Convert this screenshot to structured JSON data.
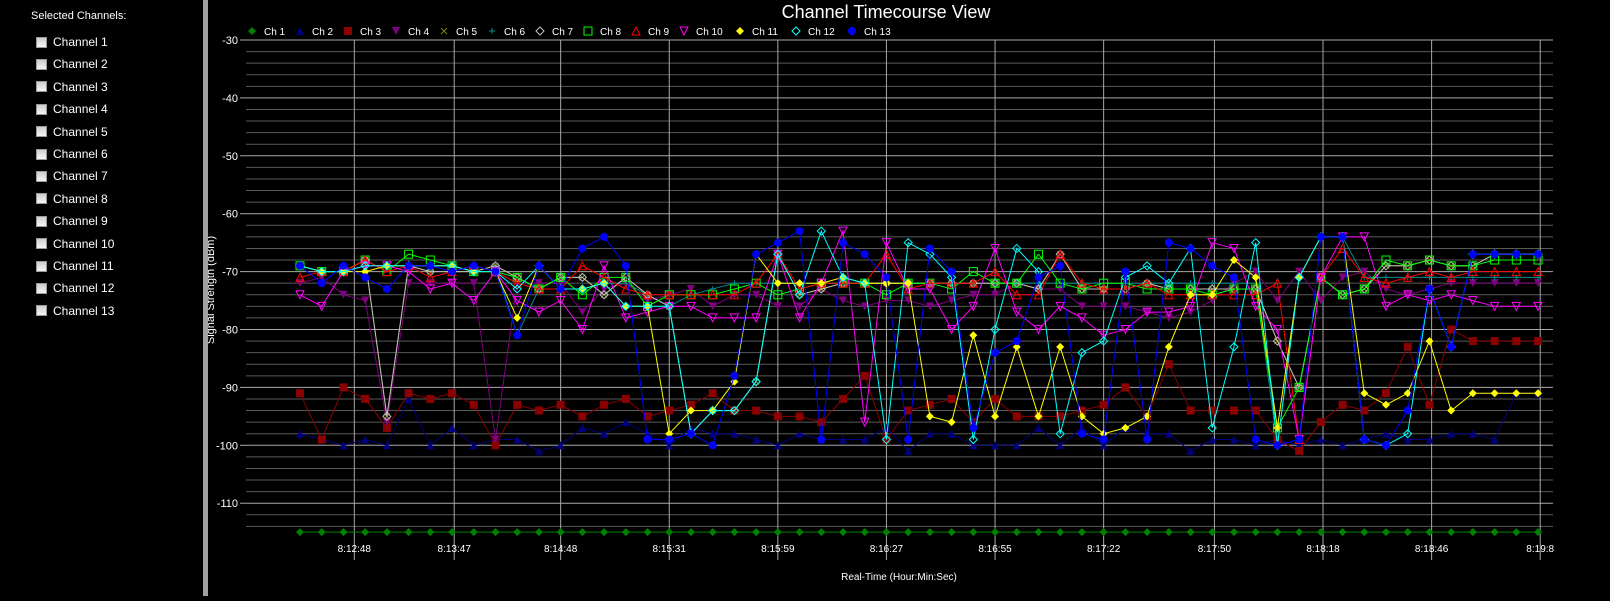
{
  "sidebar": {
    "title": "Selected Channels:",
    "items": [
      {
        "label": "Channel 1",
        "checked": false
      },
      {
        "label": "Channel 2",
        "checked": false
      },
      {
        "label": "Channel 3",
        "checked": false
      },
      {
        "label": "Channel 4",
        "checked": false
      },
      {
        "label": "Channel 5",
        "checked": false
      },
      {
        "label": "Channel 6",
        "checked": false
      },
      {
        "label": "Channel 7",
        "checked": false
      },
      {
        "label": "Channel 8",
        "checked": false
      },
      {
        "label": "Channel 9",
        "checked": false
      },
      {
        "label": "Channel 10",
        "checked": false
      },
      {
        "label": "Channel 11",
        "checked": false
      },
      {
        "label": "Channel 12",
        "checked": false
      },
      {
        "label": "Channel 13",
        "checked": false
      }
    ]
  },
  "chart_data": {
    "type": "line",
    "title": "Channel Timecourse View",
    "xlabel": "Real-Time (Hour:Min:Sec)",
    "ylabel": "Signal Strength (dBm)",
    "ylim": [
      -115,
      -30
    ],
    "yticks": [
      -30,
      -40,
      -50,
      -60,
      -70,
      -80,
      -90,
      -100,
      -110
    ],
    "xticks": [
      "8:12:48",
      "8:13:47",
      "8:14:48",
      "8:15:31",
      "8:15:59",
      "8:16:27",
      "8:16:55",
      "8:17:22",
      "8:17:50",
      "8:18:18",
      "8:18:46",
      "8:19:8"
    ],
    "grid": true,
    "legend_position": "top",
    "n_points": 58,
    "series": [
      {
        "name": "Ch 1",
        "color": "#008000",
        "marker": "diamond-filled",
        "values": [
          -115,
          -115,
          -115,
          -115,
          -115,
          -115,
          -115,
          -115,
          -115,
          -115,
          -115,
          -115,
          -115,
          -115,
          -115,
          -115,
          -115,
          -115,
          -115,
          -115,
          -115,
          -115,
          -115,
          -115,
          -115,
          -115,
          -115,
          -115,
          -115,
          -115,
          -115,
          -115,
          -115,
          -115,
          -115,
          -115,
          -115,
          -115,
          -115,
          -115,
          -115,
          -115,
          -115,
          -115,
          -115,
          -115,
          -115,
          -115,
          -115,
          -115,
          -115,
          -115,
          -115,
          -115,
          -115,
          -115,
          -115,
          -115
        ]
      },
      {
        "name": "Ch 2",
        "color": "#000080",
        "marker": "triangle-up-filled",
        "values": [
          -98,
          -99,
          -100,
          -99,
          -100,
          -92,
          -100,
          -97,
          -100,
          -99,
          -99,
          -101,
          -100,
          -97,
          -98,
          -96,
          -98,
          -100,
          -97,
          -98,
          -98,
          -99,
          -100,
          -98,
          -99,
          -99,
          -99,
          -97,
          -101,
          -98,
          -98,
          -100,
          -100,
          -100,
          -97,
          -100,
          -97,
          -100,
          -97,
          -98,
          -98,
          -101,
          -99,
          -99,
          -100,
          -99,
          -100,
          -99,
          -100,
          -99,
          -98,
          -99,
          -99,
          -98,
          -98,
          -99,
          -91,
          -91
        ]
      },
      {
        "name": "Ch 3",
        "color": "#8b0000",
        "marker": "square-filled",
        "values": [
          -91,
          -99,
          -90,
          -92,
          -97,
          -91,
          -92,
          -91,
          -93,
          -100,
          -93,
          -94,
          -93,
          -95,
          -93,
          -92,
          -95,
          -94,
          -93,
          -91,
          -94,
          -94,
          -95,
          -95,
          -96,
          -92,
          -88,
          -99,
          -94,
          -93,
          -92,
          -96,
          -92,
          -95,
          -95,
          -95,
          -94,
          -93,
          -90,
          -95,
          -86,
          -94,
          -94,
          -94,
          -94,
          -99,
          -101,
          -96,
          -93,
          -94,
          -91,
          -83,
          -93,
          -80,
          -82,
          -82,
          -82,
          -82
        ]
      },
      {
        "name": "Ch 4",
        "color": "#800080",
        "marker": "triangle-down-filled",
        "values": [
          -72,
          -71,
          -74,
          -75,
          -96,
          -72,
          -72,
          -72,
          -72,
          -99,
          -72,
          -72,
          -72,
          -77,
          -73,
          -72,
          -75,
          -74,
          -73,
          -76,
          -74,
          -74,
          -76,
          -76,
          -73,
          -75,
          -76,
          -75,
          -75,
          -76,
          -75,
          -74,
          -74,
          -72,
          -73,
          -73,
          -76,
          -76,
          -76,
          -77,
          -78,
          -77,
          -75,
          -72,
          -70,
          -75,
          -70,
          -75,
          -71,
          -70,
          -73,
          -74,
          -73,
          -72,
          -72,
          -72,
          -72,
          -72
        ]
      },
      {
        "name": "Ch 5",
        "color": "#808000",
        "marker": "x",
        "values": [
          -69,
          -70,
          -70,
          -68,
          -95,
          -69,
          -70,
          -70,
          -70,
          -69,
          -71,
          -73,
          -71,
          -71,
          -74,
          -71,
          -74,
          -76,
          -98,
          -94,
          -94,
          -89,
          -67,
          -74,
          -73,
          -72,
          -72,
          -72,
          -72,
          -72,
          -72,
          -72,
          -72,
          -72,
          -73,
          -67,
          -73,
          -73,
          -73,
          -72,
          -73,
          -73,
          -73,
          -73,
          -73,
          -82,
          -90,
          -71,
          -74,
          -73,
          -69,
          -69,
          -68,
          -69,
          -69,
          -67,
          -67,
          -67
        ]
      },
      {
        "name": "Ch 6",
        "color": "#008b8b",
        "marker": "plus",
        "values": [
          -69,
          -70,
          -70,
          -69,
          -69,
          -69,
          -69,
          -69,
          -70,
          -69,
          -81,
          -73,
          -73,
          -73,
          -72,
          -72,
          -74,
          -76,
          -74,
          -73,
          -72,
          -72,
          -72,
          -72,
          -72,
          -72,
          -72,
          -72,
          -72,
          -72,
          -72,
          -72,
          -72,
          -72,
          -72,
          -72,
          -72,
          -72,
          -72,
          -72,
          -72,
          -72,
          -72,
          -72,
          -72,
          -100,
          -71,
          -64,
          -64,
          -71,
          -71,
          -71,
          -71,
          -71,
          -71,
          -71,
          -71,
          -71
        ]
      },
      {
        "name": "Ch 7",
        "color": "#c0c0c0",
        "marker": "diamond-open",
        "values": [
          -69,
          -70,
          -70,
          -68,
          -95,
          -69,
          -70,
          -70,
          -70,
          -69,
          -71,
          -73,
          -71,
          -71,
          -74,
          -71,
          -74,
          -76,
          -98,
          -94,
          -94,
          -89,
          -67,
          -74,
          -73,
          -72,
          -72,
          -72,
          -72,
          -72,
          -72,
          -72,
          -72,
          -72,
          -73,
          -67,
          -73,
          -73,
          -73,
          -72,
          -73,
          -73,
          -73,
          -73,
          -73,
          -82,
          -90,
          -71,
          -74,
          -73,
          -69,
          -69,
          -68,
          -69,
          -69,
          -67,
          -67,
          -67
        ]
      },
      {
        "name": "Ch 8",
        "color": "#00ff00",
        "marker": "square-open",
        "values": [
          -69,
          -70,
          -70,
          -68,
          -70,
          -67,
          -68,
          -69,
          -70,
          -70,
          -71,
          -73,
          -71,
          -74,
          -71,
          -71,
          -76,
          -74,
          -74,
          -74,
          -73,
          -72,
          -74,
          -73,
          -72,
          -72,
          -72,
          -74,
          -72,
          -72,
          -73,
          -70,
          -72,
          -72,
          -67,
          -72,
          -73,
          -72,
          -72,
          -73,
          -73,
          -73,
          -74,
          -73,
          -73,
          -97,
          -90,
          -71,
          -74,
          -73,
          -68,
          -69,
          -68,
          -69,
          -69,
          -68,
          -68,
          -68
        ]
      },
      {
        "name": "Ch 9",
        "color": "#ff0000",
        "marker": "triangle-up-open",
        "values": [
          -71,
          -70,
          -70,
          -68,
          -70,
          -69,
          -71,
          -70,
          -69,
          -70,
          -72,
          -73,
          -73,
          -69,
          -71,
          -73,
          -74,
          -74,
          -74,
          -74,
          -74,
          -72,
          -67,
          -73,
          -72,
          -72,
          -72,
          -67,
          -73,
          -72,
          -72,
          -72,
          -70,
          -74,
          -74,
          -67,
          -72,
          -73,
          -73,
          -72,
          -74,
          -74,
          -74,
          -74,
          -74,
          -72,
          -99,
          -71,
          -66,
          -71,
          -72,
          -71,
          -70,
          -71,
          -70,
          -70,
          -70,
          -70
        ]
      },
      {
        "name": "Ch 10",
        "color": "#ff00ff",
        "marker": "triangle-down-open",
        "values": [
          -74,
          -76,
          -70,
          -69,
          -69,
          -70,
          -73,
          -72,
          -75,
          -70,
          -75,
          -77,
          -75,
          -80,
          -69,
          -78,
          -77,
          -76,
          -76,
          -78,
          -78,
          -78,
          -67,
          -78,
          -72,
          -63,
          -96,
          -65,
          -73,
          -73,
          -80,
          -76,
          -66,
          -77,
          -80,
          -76,
          -78,
          -81,
          -80,
          -77,
          -77,
          -76,
          -65,
          -66,
          -76,
          -80,
          -99,
          -71,
          -64,
          -64,
          -76,
          -74,
          -75,
          -74,
          -75,
          -76,
          -76,
          -76
        ]
      },
      {
        "name": "Ch 11",
        "color": "#ffff00",
        "marker": "diamond-filled",
        "values": [
          -69,
          -70,
          -70,
          -70,
          -69,
          -69,
          -69,
          -69,
          -70,
          -70,
          -78,
          -69,
          -73,
          -73,
          -72,
          -76,
          -76,
          -98,
          -94,
          -94,
          -89,
          -67,
          -72,
          -72,
          -72,
          -71,
          -72,
          -72,
          -72,
          -95,
          -96,
          -81,
          -95,
          -83,
          -95,
          -83,
          -95,
          -98,
          -97,
          -95,
          -83,
          -74,
          -74,
          -68,
          -71,
          -97,
          -71,
          -64,
          -64,
          -91,
          -93,
          -91,
          -82,
          -94,
          -91,
          -91,
          -91,
          -91
        ]
      },
      {
        "name": "Ch 12",
        "color": "#00ffff",
        "marker": "diamond-open",
        "values": [
          -69,
          -70,
          -70,
          -69,
          -69,
          -69,
          -69,
          -69,
          -70,
          -70,
          -73,
          -69,
          -73,
          -73,
          -72,
          -76,
          -76,
          -76,
          -98,
          -94,
          -94,
          -89,
          -67,
          -74,
          -63,
          -71,
          -72,
          -99,
          -65,
          -67,
          -71,
          -99,
          -80,
          -66,
          -70,
          -98,
          -84,
          -82,
          -71,
          -69,
          -72,
          -66,
          -97,
          -83,
          -65,
          -100,
          -71,
          -64,
          -64,
          -99,
          -100,
          -98,
          -73,
          -83,
          -67,
          -67,
          -67,
          -67
        ]
      },
      {
        "name": "Ch 13",
        "color": "#0000ff",
        "marker": "circle-filled",
        "values": [
          -69,
          -72,
          -69,
          -71,
          -73,
          -69,
          -69,
          -70,
          -69,
          -70,
          -81,
          -69,
          -73,
          -66,
          -64,
          -69,
          -99,
          -99,
          -98,
          -100,
          -88,
          -67,
          -65,
          -63,
          -99,
          -65,
          -67,
          -71,
          -99,
          -66,
          -70,
          -97,
          -84,
          -82,
          -71,
          -69,
          -98,
          -99,
          -70,
          -99,
          -65,
          -66,
          -69,
          -71,
          -99,
          -100,
          -99,
          -64,
          -64,
          -99,
          -100,
          -94,
          -73,
          -83,
          -67,
          -67,
          -67,
          -67
        ]
      }
    ]
  }
}
